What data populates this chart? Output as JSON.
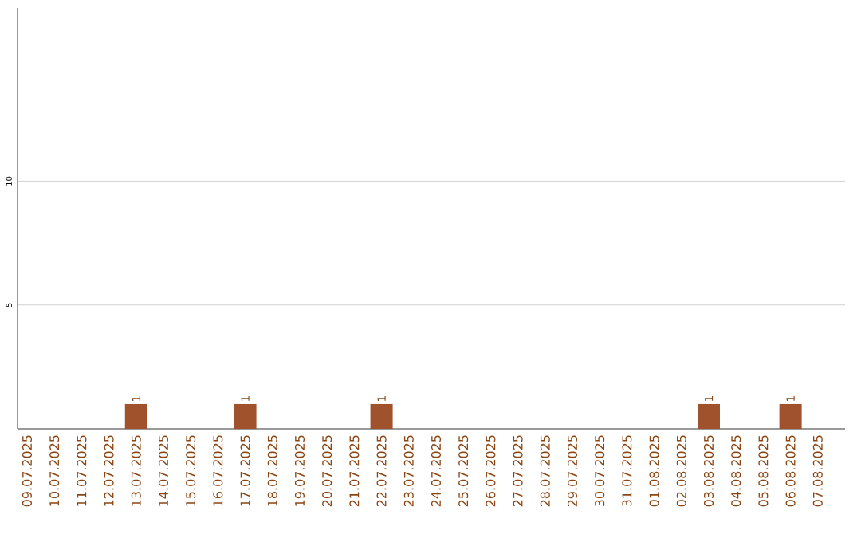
{
  "chart_data": {
    "type": "bar",
    "categories": [
      "09.07.2025",
      "10.07.2025",
      "11.07.2025",
      "12.07.2025",
      "13.07.2025",
      "14.07.2025",
      "15.07.2025",
      "16.07.2025",
      "17.07.2025",
      "18.07.2025",
      "19.07.2025",
      "20.07.2025",
      "21.07.2025",
      "22.07.2025",
      "23.07.2025",
      "24.07.2025",
      "25.07.2025",
      "26.07.2025",
      "27.07.2025",
      "28.07.2025",
      "29.07.2025",
      "30.07.2025",
      "31.07.2025",
      "01.08.2025",
      "02.08.2025",
      "03.08.2025",
      "04.08.2025",
      "05.08.2025",
      "06.08.2025",
      "07.08.2025"
    ],
    "values": [
      0,
      0,
      0,
      0,
      1,
      0,
      0,
      0,
      1,
      0,
      0,
      0,
      0,
      1,
      0,
      0,
      0,
      0,
      0,
      0,
      0,
      0,
      0,
      0,
      0,
      1,
      0,
      0,
      1,
      0
    ],
    "value_labels": [
      null,
      null,
      null,
      null,
      "1",
      null,
      null,
      null,
      "1",
      null,
      null,
      null,
      null,
      "1",
      null,
      null,
      null,
      null,
      null,
      null,
      null,
      null,
      null,
      null,
      null,
      "1",
      null,
      null,
      "1",
      null
    ],
    "color": "#a0522d",
    "ylim": [
      0,
      17
    ],
    "yticks": [
      5,
      10
    ],
    "grid": "y"
  }
}
